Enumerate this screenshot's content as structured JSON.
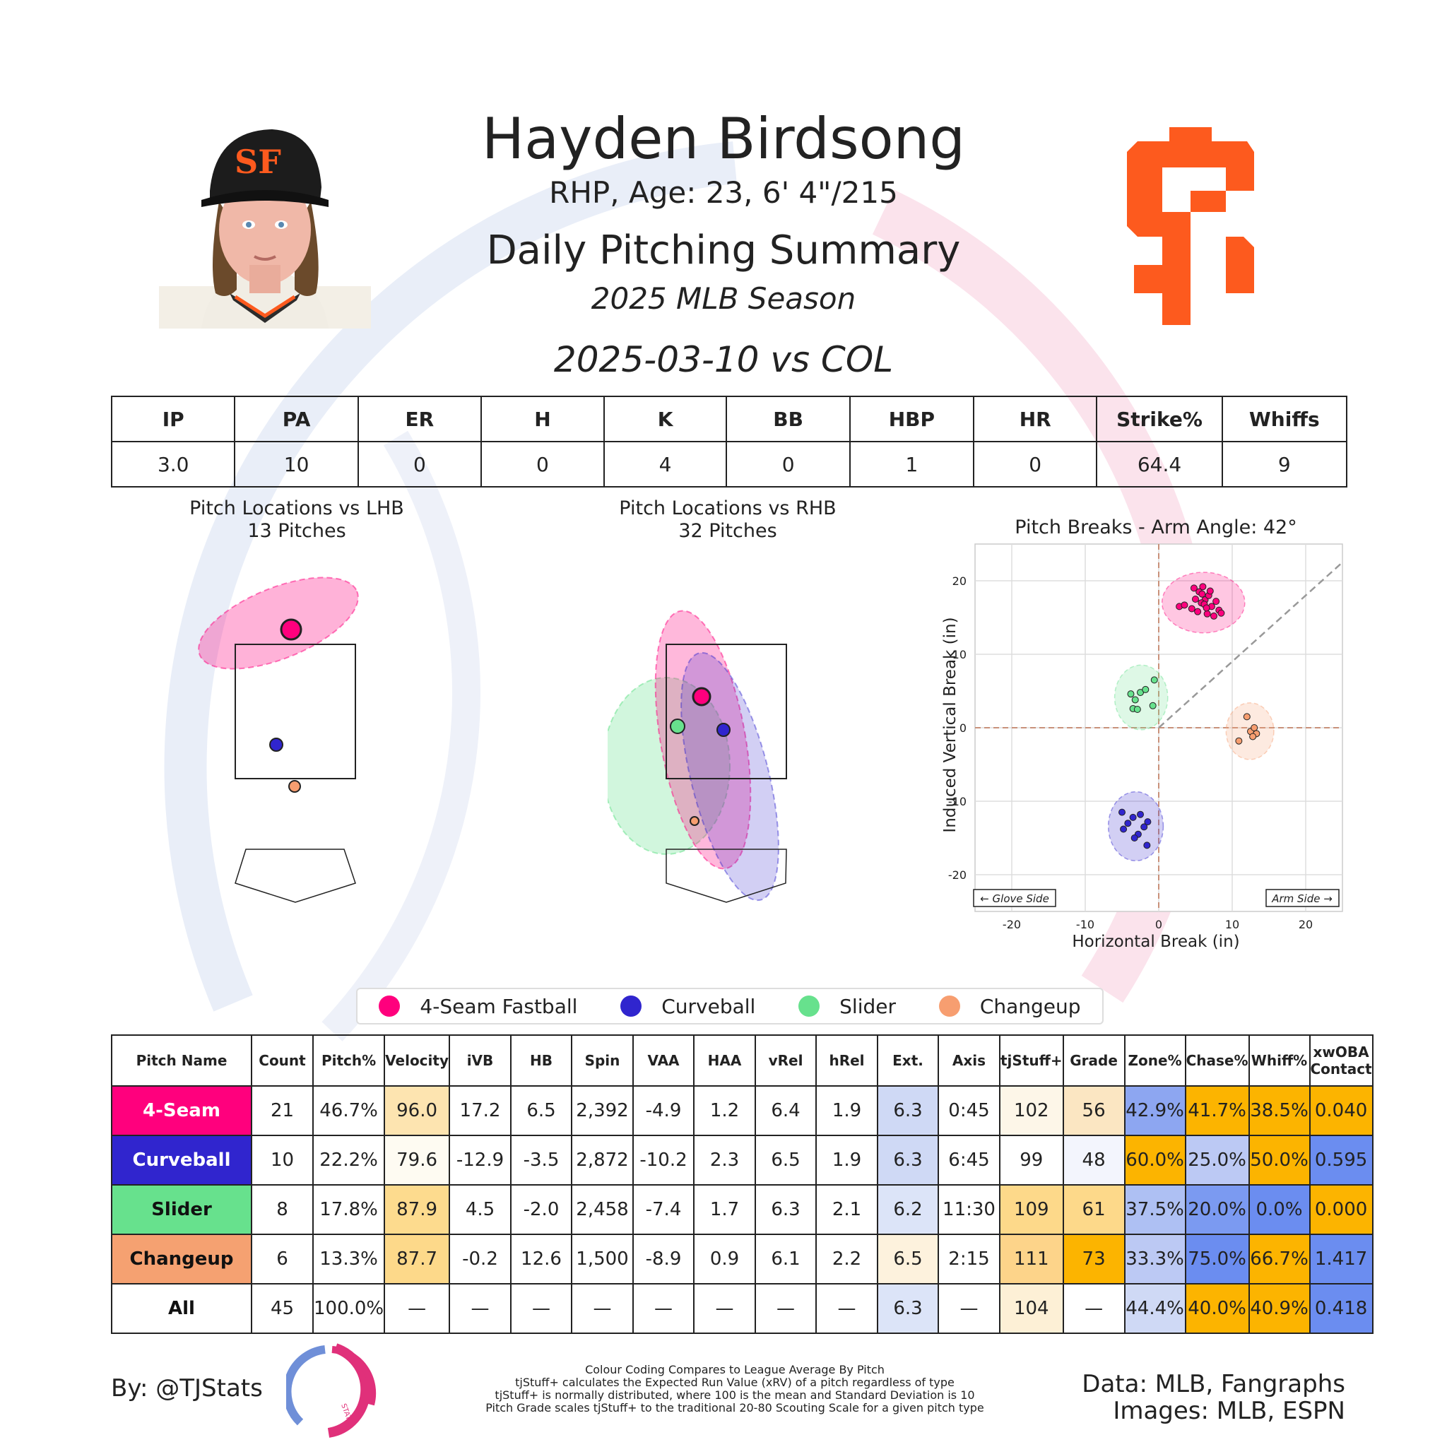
{
  "header": {
    "player_name": "Hayden Birdsong",
    "player_info": "RHP, Age: 23, 6' 4\"/215",
    "summary_title": "Daily Pitching Summary",
    "season": "2025 MLB Season",
    "game": "2025-03-10 vs COL",
    "team_logo_text": "SF"
  },
  "colors": {
    "fastball": "#ff007d",
    "curveball": "#3025ce",
    "slider": "#67e18d",
    "changeup": "#f79e70",
    "team_orange": "#fd5a1e"
  },
  "stat_line": {
    "headers": [
      "IP",
      "PA",
      "ER",
      "H",
      "K",
      "BB",
      "HBP",
      "HR",
      "Strike%",
      "Whiffs"
    ],
    "values": [
      "3.0",
      "10",
      "0",
      "0",
      "4",
      "0",
      "1",
      "0",
      "64.4",
      "9"
    ]
  },
  "plots": {
    "lhb_title": "Pitch Locations vs LHB",
    "lhb_count": "13 Pitches",
    "rhb_title": "Pitch Locations vs RHB",
    "rhb_count": "32 Pitches"
  },
  "chart_data": {
    "type": "scatter",
    "title": "Pitch Breaks - Arm Angle: 42°",
    "xlabel": "Horizontal Break (in)",
    "ylabel": "Induced Vertical Break (in)",
    "xlim": [
      -25,
      25
    ],
    "ylim": [
      -25,
      25
    ],
    "x_ticks": [
      -20,
      -10,
      0,
      10,
      20
    ],
    "y_ticks": [
      20,
      10,
      0,
      -10,
      -20
    ],
    "arm_angle_deg": 42,
    "grid": true,
    "glove_side_label": "← Glove Side",
    "arm_side_label": "Arm Side →",
    "series": [
      {
        "name": "4-Seam Fastball",
        "color": "#ff007d",
        "points": [
          [
            2.8,
            16.5
          ],
          [
            3.5,
            16.7
          ],
          [
            4.5,
            16.2
          ],
          [
            5.0,
            17.5
          ],
          [
            5.5,
            18.5
          ],
          [
            6.0,
            19.2
          ],
          [
            6.3,
            17.4
          ],
          [
            5.8,
            17.0
          ],
          [
            6.8,
            18.0
          ],
          [
            7.2,
            16.5
          ],
          [
            5.3,
            15.8
          ],
          [
            6.6,
            15.5
          ],
          [
            7.8,
            17.2
          ],
          [
            8.2,
            16.0
          ],
          [
            7.5,
            15.2
          ],
          [
            5.9,
            18.2
          ],
          [
            4.8,
            19.0
          ],
          [
            6.2,
            16.8
          ],
          [
            7.0,
            18.6
          ],
          [
            8.5,
            15.6
          ],
          [
            6.5,
            16.3
          ]
        ]
      },
      {
        "name": "Curveball",
        "color": "#3025ce",
        "points": [
          [
            -5.0,
            -11.5
          ],
          [
            -4.2,
            -13.0
          ],
          [
            -3.5,
            -12.2
          ],
          [
            -2.8,
            -14.5
          ],
          [
            -2.0,
            -13.5
          ],
          [
            -1.5,
            -12.8
          ],
          [
            -3.3,
            -15.0
          ],
          [
            -2.5,
            -11.8
          ],
          [
            -4.8,
            -13.8
          ],
          [
            -1.6,
            -16.0
          ]
        ]
      },
      {
        "name": "Slider",
        "color": "#67e18d",
        "points": [
          [
            -3.8,
            4.6
          ],
          [
            -3.2,
            3.8
          ],
          [
            -2.5,
            4.8
          ],
          [
            -1.8,
            5.2
          ],
          [
            -3.5,
            2.6
          ],
          [
            -2.9,
            2.5
          ],
          [
            -0.8,
            3.0
          ],
          [
            -0.6,
            6.5
          ]
        ]
      },
      {
        "name": "Changeup",
        "color": "#f79e70",
        "points": [
          [
            12.0,
            1.5
          ],
          [
            12.5,
            -0.5
          ],
          [
            13.0,
            0.0
          ],
          [
            13.3,
            -0.8
          ],
          [
            12.8,
            -1.2
          ],
          [
            10.9,
            -1.8
          ]
        ]
      }
    ]
  },
  "legend": {
    "items": [
      {
        "label": "4-Seam Fastball",
        "color": "#ff007d"
      },
      {
        "label": "Curveball",
        "color": "#3025ce"
      },
      {
        "label": "Slider",
        "color": "#67e18d"
      },
      {
        "label": "Changeup",
        "color": "#f79e70"
      }
    ]
  },
  "pitch_table": {
    "headers": [
      "Pitch Name",
      "Count",
      "Pitch%",
      "Velocity",
      "iVB",
      "HB",
      "Spin",
      "VAA",
      "HAA",
      "vRel",
      "hRel",
      "Ext.",
      "Axis",
      "tjStuff+",
      "Grade",
      "Zone%",
      "Chase%",
      "Whiff%",
      "xwOBA Contact"
    ],
    "rows": [
      {
        "name": "4-Seam",
        "name_bg": "#ff007d",
        "name_color": "#ffffff",
        "cells": [
          "21",
          "46.7%",
          "96.0",
          "17.2",
          "6.5",
          "2,392",
          "-4.9",
          "1.2",
          "6.4",
          "1.9",
          "6.3",
          "0:45",
          "102",
          "56",
          "42.9%",
          "41.7%",
          "38.5%",
          "0.040"
        ],
        "bgs": [
          "#fff",
          "#fff",
          "#fde4b0",
          "#fff",
          "#fff",
          "#fff",
          "#fff",
          "#fff",
          "#fff",
          "#fff",
          "#cfd9f5",
          "#fff",
          "#fdf6e8",
          "#fbe6c2",
          "#8da6f1",
          "#fcb400",
          "#fcb400",
          "#fcb400"
        ]
      },
      {
        "name": "Curveball",
        "name_bg": "#3025ce",
        "name_color": "#ffffff",
        "cells": [
          "10",
          "22.2%",
          "79.6",
          "-12.9",
          "-3.5",
          "2,872",
          "-10.2",
          "2.3",
          "6.5",
          "1.9",
          "6.3",
          "6:45",
          "99",
          "48",
          "60.0%",
          "25.0%",
          "50.0%",
          "0.595"
        ],
        "bgs": [
          "#fff",
          "#fff",
          "#fefbf2",
          "#fff",
          "#fff",
          "#fff",
          "#fff",
          "#fff",
          "#fff",
          "#fff",
          "#cfd9f5",
          "#fff",
          "#fff",
          "#f3f5fd",
          "#fcb400",
          "#bcc9f4",
          "#fcb400",
          "#6b8df0"
        ]
      },
      {
        "name": "Slider",
        "name_bg": "#67e18d",
        "name_color": "#111111",
        "cells": [
          "8",
          "17.8%",
          "87.9",
          "4.5",
          "-2.0",
          "2,458",
          "-7.4",
          "1.7",
          "6.3",
          "2.1",
          "6.2",
          "11:30",
          "109",
          "61",
          "37.5%",
          "20.0%",
          "0.0%",
          "0.000"
        ],
        "bgs": [
          "#fff",
          "#fff",
          "#fddb8e",
          "#fff",
          "#fff",
          "#fff",
          "#fff",
          "#fff",
          "#fff",
          "#fff",
          "#dce4f8",
          "#fff",
          "#fdd98a",
          "#fdd98a",
          "#aec0f3",
          "#7b9af1",
          "#6b8df0",
          "#fcb400"
        ]
      },
      {
        "name": "Changeup",
        "name_bg": "#f5a171",
        "name_color": "#111111",
        "cells": [
          "6",
          "13.3%",
          "87.7",
          "-0.2",
          "12.6",
          "1,500",
          "-8.9",
          "0.9",
          "6.1",
          "2.2",
          "6.5",
          "2:15",
          "111",
          "73",
          "33.3%",
          "75.0%",
          "66.7%",
          "1.417"
        ],
        "bgs": [
          "#fff",
          "#fff",
          "#fdd98a",
          "#fff",
          "#fff",
          "#fff",
          "#fff",
          "#fff",
          "#fff",
          "#fff",
          "#fdf2dd",
          "#fff",
          "#fdd48a",
          "#fcb400",
          "#bcc9f4",
          "#6b8df0",
          "#fcb400",
          "#6b8df0"
        ]
      },
      {
        "name": "All",
        "name_bg": "#ffffff",
        "name_color": "#111111",
        "cells": [
          "45",
          "100.0%",
          "—",
          "—",
          "—",
          "—",
          "—",
          "—",
          "—",
          "—",
          "6.3",
          "—",
          "104",
          "—",
          "44.4%",
          "40.0%",
          "40.9%",
          "0.418"
        ],
        "bgs": [
          "#fff",
          "#fff",
          "#fff",
          "#fff",
          "#fff",
          "#fff",
          "#fff",
          "#fff",
          "#fff",
          "#fff",
          "#dce4f8",
          "#fff",
          "#fdf0d6",
          "#fff",
          "#cfd9f5",
          "#fcb400",
          "#fcb400",
          "#6b8df0"
        ]
      }
    ]
  },
  "footer": {
    "by": "By: @TJStats",
    "notes": [
      "Colour Coding Compares to League Average By Pitch",
      "tjStuff+ calculates the Expected Run Value (xRV) of a pitch regardless of type",
      "tjStuff+ is normally distributed, where 100 is the mean and Standard Deviation is 10",
      "Pitch Grade scales tjStuff+ to the traditional 20-80 Scouting Scale for a given pitch type"
    ],
    "data_credit": "Data: MLB, Fangraphs",
    "image_credit": "Images: MLB, ESPN",
    "logo_text": "STATS"
  }
}
